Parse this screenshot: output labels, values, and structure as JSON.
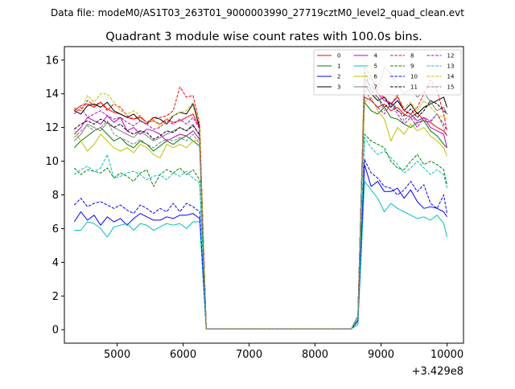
{
  "chart_data": {
    "type": "line",
    "suptitle": "Data file: modeM0/AS1T03_263T01_9000003990_27719cztM0_level2_quad_clean.evt",
    "title": "Quadrant 3 module wise count rates with 100.0s bins.",
    "xlabel": "",
    "ylabel": "",
    "x_offset_label": "+3.429e8",
    "xlim": [
      4200,
      10250
    ],
    "ylim": [
      -0.8,
      16.8
    ],
    "x_ticks": [
      5000,
      6000,
      7000,
      8000,
      9000,
      10000
    ],
    "y_ticks": [
      0,
      2,
      4,
      6,
      8,
      10,
      12,
      14,
      16
    ],
    "legend_position": "top-right",
    "x": [
      4350,
      4450,
      4550,
      4650,
      4750,
      4850,
      4950,
      5050,
      5150,
      5250,
      5350,
      5450,
      5550,
      5650,
      5750,
      5850,
      5950,
      6050,
      6150,
      6250,
      6300,
      6350,
      6450,
      6550,
      6650,
      6750,
      6850,
      6950,
      7050,
      7150,
      7250,
      7350,
      7450,
      7550,
      7650,
      7750,
      7850,
      7950,
      8050,
      8150,
      8250,
      8350,
      8450,
      8550,
      8650,
      8700,
      8750,
      8850,
      8950,
      9050,
      9150,
      9250,
      9350,
      9450,
      9550,
      9650,
      9750,
      9850,
      9950,
      10000
    ],
    "series": [
      {
        "name": "0",
        "color": "#ff0000",
        "dash": false,
        "values": [
          13.0,
          13.3,
          13.4,
          13.2,
          13.5,
          13.1,
          12.9,
          12.8,
          12.6,
          12.5,
          12.6,
          12.3,
          12.4,
          12.2,
          12.5,
          12.3,
          12.4,
          12.6,
          12.8,
          12.0,
          6.0,
          0.05,
          0.05,
          0.05,
          0.05,
          0.05,
          0.05,
          0.05,
          0.05,
          0.05,
          0.05,
          0.05,
          0.05,
          0.05,
          0.05,
          0.05,
          0.05,
          0.05,
          0.05,
          0.05,
          0.05,
          0.05,
          0.05,
          0.05,
          0.8,
          8.0,
          13.8,
          13.6,
          13.2,
          13.4,
          13.0,
          13.2,
          12.8,
          12.6,
          12.9,
          12.4,
          12.3,
          12.0,
          11.8,
          11.5
        ]
      },
      {
        "name": "1",
        "color": "#008000",
        "dash": false,
        "values": [
          10.8,
          11.2,
          11.5,
          11.8,
          12.0,
          11.6,
          11.2,
          11.4,
          11.0,
          10.8,
          11.2,
          11.0,
          10.6,
          10.9,
          11.2,
          11.0,
          11.3,
          11.5,
          11.2,
          10.9,
          5.5,
          0.05,
          0.05,
          0.05,
          0.05,
          0.05,
          0.05,
          0.05,
          0.05,
          0.05,
          0.05,
          0.05,
          0.05,
          0.05,
          0.05,
          0.05,
          0.05,
          0.05,
          0.05,
          0.05,
          0.05,
          0.05,
          0.05,
          0.05,
          0.8,
          8.0,
          13.5,
          13.0,
          12.8,
          13.2,
          12.6,
          12.5,
          12.2,
          12.0,
          12.3,
          12.4,
          11.8,
          11.5,
          11.0,
          10.8
        ]
      },
      {
        "name": "2",
        "color": "#0000ff",
        "dash": false,
        "values": [
          6.4,
          7.0,
          6.5,
          6.8,
          6.2,
          6.7,
          6.4,
          6.6,
          6.2,
          6.6,
          6.9,
          6.7,
          6.5,
          6.5,
          6.7,
          6.6,
          6.8,
          6.8,
          6.9,
          6.6,
          3.3,
          0.05,
          0.05,
          0.05,
          0.05,
          0.05,
          0.05,
          0.05,
          0.05,
          0.05,
          0.05,
          0.05,
          0.05,
          0.05,
          0.05,
          0.05,
          0.05,
          0.05,
          0.05,
          0.05,
          0.05,
          0.05,
          0.05,
          0.05,
          0.5,
          5.0,
          9.8,
          8.5,
          8.8,
          8.2,
          8.2,
          8.4,
          7.8,
          8.3,
          7.6,
          7.2,
          7.3,
          7.2,
          7.0,
          6.7
        ]
      },
      {
        "name": "3",
        "color": "#000000",
        "dash": false,
        "values": [
          13.0,
          12.8,
          13.3,
          13.4,
          13.2,
          13.5,
          13.0,
          12.8,
          12.6,
          12.8,
          12.4,
          12.2,
          12.6,
          12.5,
          12.2,
          12.7,
          12.9,
          12.8,
          13.4,
          12.0,
          6.0,
          0.05,
          0.05,
          0.05,
          0.05,
          0.05,
          0.05,
          0.05,
          0.05,
          0.05,
          0.05,
          0.05,
          0.05,
          0.05,
          0.05,
          0.05,
          0.05,
          0.05,
          0.05,
          0.05,
          0.05,
          0.05,
          0.05,
          0.05,
          0.8,
          8.0,
          14.5,
          14.0,
          13.6,
          13.8,
          13.2,
          13.6,
          13.0,
          13.4,
          12.8,
          13.2,
          13.4,
          13.6,
          13.8,
          13.2
        ]
      },
      {
        "name": "4",
        "color": "#bf00bf",
        "dash": false,
        "values": [
          11.6,
          12.0,
          12.6,
          12.4,
          12.2,
          12.7,
          12.3,
          12.6,
          11.8,
          12.0,
          11.6,
          11.9,
          11.8,
          11.6,
          11.2,
          11.4,
          11.6,
          11.5,
          11.8,
          11.3,
          5.6,
          0.05,
          0.05,
          0.05,
          0.05,
          0.05,
          0.05,
          0.05,
          0.05,
          0.05,
          0.05,
          0.05,
          0.05,
          0.05,
          0.05,
          0.05,
          0.05,
          0.05,
          0.05,
          0.05,
          0.05,
          0.05,
          0.05,
          0.05,
          0.8,
          8.0,
          14.9,
          14.5,
          14.0,
          13.6,
          13.4,
          13.8,
          13.0,
          12.8,
          12.4,
          12.6,
          12.0,
          11.8,
          11.6,
          10.8
        ]
      },
      {
        "name": "5",
        "color": "#00bfbf",
        "dash": false,
        "values": [
          5.9,
          5.9,
          6.4,
          6.3,
          6.0,
          5.5,
          6.1,
          6.2,
          6.3,
          5.9,
          6.3,
          6.2,
          5.9,
          6.1,
          6.3,
          6.2,
          6.3,
          6.0,
          6.4,
          6.4,
          3.2,
          0.05,
          0.05,
          0.05,
          0.05,
          0.05,
          0.05,
          0.05,
          0.05,
          0.05,
          0.05,
          0.05,
          0.05,
          0.05,
          0.05,
          0.05,
          0.05,
          0.05,
          0.05,
          0.05,
          0.05,
          0.05,
          0.05,
          0.05,
          0.3,
          4.5,
          8.8,
          8.3,
          7.8,
          7.0,
          7.5,
          7.2,
          7.0,
          6.8,
          6.6,
          6.7,
          6.5,
          6.8,
          6.3,
          5.5
        ]
      },
      {
        "name": "6",
        "color": "#bfbf00",
        "dash": false,
        "values": [
          11.8,
          11.2,
          10.6,
          11.0,
          11.6,
          11.2,
          10.8,
          10.6,
          10.8,
          10.5,
          11.0,
          10.8,
          10.4,
          10.2,
          11.0,
          10.8,
          11.0,
          10.8,
          11.2,
          11.3,
          5.6,
          0.05,
          0.05,
          0.05,
          0.05,
          0.05,
          0.05,
          0.05,
          0.05,
          0.05,
          0.05,
          0.05,
          0.05,
          0.05,
          0.05,
          0.05,
          0.05,
          0.05,
          0.05,
          0.05,
          0.05,
          0.05,
          0.05,
          0.05,
          0.8,
          8.0,
          13.5,
          13.8,
          13.0,
          12.5,
          11.2,
          12.0,
          11.6,
          12.2,
          11.8,
          12.0,
          11.5,
          11.2,
          10.8,
          10.3
        ]
      },
      {
        "name": "7",
        "color": "#808080",
        "dash": false,
        "values": [
          11.2,
          11.6,
          12.2,
          12.0,
          11.8,
          12.3,
          12.0,
          11.8,
          11.6,
          11.4,
          11.8,
          11.5,
          11.2,
          11.4,
          11.6,
          11.8,
          12.0,
          11.8,
          12.2,
          11.5,
          5.7,
          0.05,
          0.05,
          0.05,
          0.05,
          0.05,
          0.05,
          0.05,
          0.05,
          0.05,
          0.05,
          0.05,
          0.05,
          0.05,
          0.05,
          0.05,
          0.05,
          0.05,
          0.05,
          0.05,
          0.05,
          0.05,
          0.05,
          0.05,
          0.8,
          8.0,
          14.7,
          15.0,
          14.2,
          15.6,
          15.2,
          14.5,
          14.0,
          14.3,
          13.8,
          14.1,
          13.5,
          13.0,
          13.2,
          12.8
        ]
      },
      {
        "name": "8",
        "color": "#ff0000",
        "dash": true,
        "values": [
          13.1,
          13.0,
          13.6,
          13.3,
          13.5,
          13.0,
          13.4,
          13.2,
          12.7,
          12.5,
          12.7,
          12.3,
          12.6,
          12.6,
          12.7,
          13.0,
          14.4,
          13.8,
          13.9,
          12.2,
          6.1,
          0.05,
          0.05,
          0.05,
          0.05,
          0.05,
          0.05,
          0.05,
          0.05,
          0.05,
          0.05,
          0.05,
          0.05,
          0.05,
          0.05,
          0.05,
          0.05,
          0.05,
          0.05,
          0.05,
          0.05,
          0.05,
          0.05,
          0.05,
          0.8,
          8.0,
          15.6,
          15.0,
          14.0,
          13.8,
          13.4,
          13.9,
          13.0,
          12.8,
          13.2,
          14.0,
          14.8,
          14.2,
          12.8,
          11.8
        ]
      },
      {
        "name": "9",
        "color": "#008000",
        "dash": true,
        "values": [
          9.6,
          9.2,
          9.5,
          9.4,
          9.3,
          9.6,
          9.0,
          9.3,
          9.1,
          8.8,
          9.3,
          9.5,
          8.5,
          9.2,
          9.5,
          9.3,
          9.6,
          9.2,
          9.5,
          8.9,
          4.5,
          0.05,
          0.05,
          0.05,
          0.05,
          0.05,
          0.05,
          0.05,
          0.05,
          0.05,
          0.05,
          0.05,
          0.05,
          0.05,
          0.05,
          0.05,
          0.05,
          0.05,
          0.05,
          0.05,
          0.05,
          0.05,
          0.05,
          0.05,
          0.6,
          6.0,
          11.6,
          11.2,
          11.0,
          10.8,
          10.0,
          9.6,
          9.5,
          10.0,
          10.4,
          9.8,
          10.0,
          9.8,
          9.5,
          8.6
        ]
      },
      {
        "name": "10",
        "color": "#0000ff",
        "dash": true,
        "values": [
          7.4,
          7.8,
          7.3,
          7.5,
          7.6,
          7.4,
          7.2,
          7.4,
          7.1,
          6.9,
          7.4,
          7.2,
          6.9,
          7.2,
          7.0,
          7.5,
          7.0,
          7.5,
          7.3,
          7.0,
          3.5,
          0.05,
          0.05,
          0.05,
          0.05,
          0.05,
          0.05,
          0.05,
          0.05,
          0.05,
          0.05,
          0.05,
          0.05,
          0.05,
          0.05,
          0.05,
          0.05,
          0.05,
          0.05,
          0.05,
          0.05,
          0.05,
          0.05,
          0.05,
          0.5,
          5.0,
          10.1,
          9.3,
          9.0,
          8.5,
          8.4,
          8.0,
          8.3,
          8.8,
          8.2,
          8.6,
          7.5,
          7.2,
          8.0,
          6.9
        ]
      },
      {
        "name": "11",
        "color": "#000000",
        "dash": true,
        "values": [
          11.9,
          12.2,
          12.4,
          12.2,
          12.5,
          12.3,
          12.0,
          12.2,
          11.8,
          11.6,
          11.8,
          11.7,
          11.3,
          11.5,
          11.8,
          11.7,
          12.0,
          11.8,
          12.1,
          11.6,
          5.8,
          0.05,
          0.05,
          0.05,
          0.05,
          0.05,
          0.05,
          0.05,
          0.05,
          0.05,
          0.05,
          0.05,
          0.05,
          0.05,
          0.05,
          0.05,
          0.05,
          0.05,
          0.05,
          0.05,
          0.05,
          0.05,
          0.05,
          0.05,
          0.8,
          8.0,
          15.3,
          14.2,
          13.8,
          13.2,
          13.5,
          13.0,
          12.7,
          13.1,
          12.6,
          13.0,
          13.6,
          13.4,
          13.0,
          12.8
        ]
      },
      {
        "name": "12",
        "color": "#bf00bf",
        "dash": true,
        "values": [
          12.8,
          13.2,
          12.6,
          12.8,
          13.0,
          12.7,
          12.5,
          12.6,
          12.3,
          12.1,
          12.4,
          12.2,
          11.9,
          12.0,
          12.4,
          12.2,
          12.5,
          12.2,
          12.6,
          11.9,
          5.9,
          0.05,
          0.05,
          0.05,
          0.05,
          0.05,
          0.05,
          0.05,
          0.05,
          0.05,
          0.05,
          0.05,
          0.05,
          0.05,
          0.05,
          0.05,
          0.05,
          0.05,
          0.05,
          0.05,
          0.05,
          0.05,
          0.05,
          0.05,
          0.8,
          8.0,
          14.3,
          13.6,
          13.2,
          12.8,
          13.4,
          12.8,
          12.2,
          12.6,
          12.0,
          12.6,
          12.4,
          12.8,
          12.2,
          11.8
        ]
      },
      {
        "name": "13",
        "color": "#00bfbf",
        "dash": true,
        "values": [
          9.2,
          9.5,
          9.7,
          9.4,
          9.6,
          10.4,
          9.0,
          9.1,
          9.3,
          9.4,
          9.2,
          8.9,
          9.1,
          9.2,
          8.9,
          9.3,
          9.1,
          9.4,
          9.0,
          8.7,
          4.4,
          0.05,
          0.05,
          0.05,
          0.05,
          0.05,
          0.05,
          0.05,
          0.05,
          0.05,
          0.05,
          0.05,
          0.05,
          0.05,
          0.05,
          0.05,
          0.05,
          0.05,
          0.05,
          0.05,
          0.05,
          0.05,
          0.05,
          0.05,
          0.6,
          6.0,
          11.4,
          10.8,
          10.4,
          10.6,
          10.2,
          9.8,
          9.3,
          9.6,
          10.0,
          9.6,
          9.2,
          9.5,
          9.2,
          8.4
        ]
      },
      {
        "name": "14",
        "color": "#bfbf00",
        "dash": true,
        "values": [
          13.2,
          13.0,
          13.9,
          13.5,
          14.0,
          14.0,
          13.5,
          13.0,
          12.8,
          13.0,
          12.7,
          12.3,
          12.5,
          12.0,
          12.5,
          12.7,
          12.9,
          13.0,
          13.5,
          12.3,
          6.2,
          0.05,
          0.05,
          0.05,
          0.05,
          0.05,
          0.05,
          0.05,
          0.05,
          0.05,
          0.05,
          0.05,
          0.05,
          0.05,
          0.05,
          0.05,
          0.05,
          0.05,
          0.05,
          0.05,
          0.05,
          0.05,
          0.05,
          0.05,
          0.8,
          8.0,
          16.1,
          15.5,
          14.6,
          14.4,
          14.0,
          13.8,
          13.2,
          13.5,
          13.0,
          13.6,
          13.2,
          12.8,
          12.6,
          12.5
        ]
      },
      {
        "name": "15",
        "color": "#808080",
        "dash": true,
        "values": [
          11.4,
          11.8,
          12.1,
          11.8,
          12.0,
          12.4,
          11.6,
          11.4,
          11.2,
          11.0,
          11.3,
          11.0,
          10.8,
          11.1,
          11.3,
          11.2,
          11.4,
          11.2,
          11.6,
          11.0,
          5.5,
          0.05,
          0.05,
          0.05,
          0.05,
          0.05,
          0.05,
          0.05,
          0.05,
          0.05,
          0.05,
          0.05,
          0.05,
          0.05,
          0.05,
          0.05,
          0.05,
          0.05,
          0.05,
          0.05,
          0.05,
          0.05,
          0.05,
          0.05,
          0.8,
          8.0,
          14.8,
          14.0,
          13.8,
          13.0,
          13.4,
          13.2,
          12.4,
          12.8,
          12.2,
          12.6,
          12.3,
          12.8,
          12.0,
          11.5
        ]
      }
    ]
  }
}
